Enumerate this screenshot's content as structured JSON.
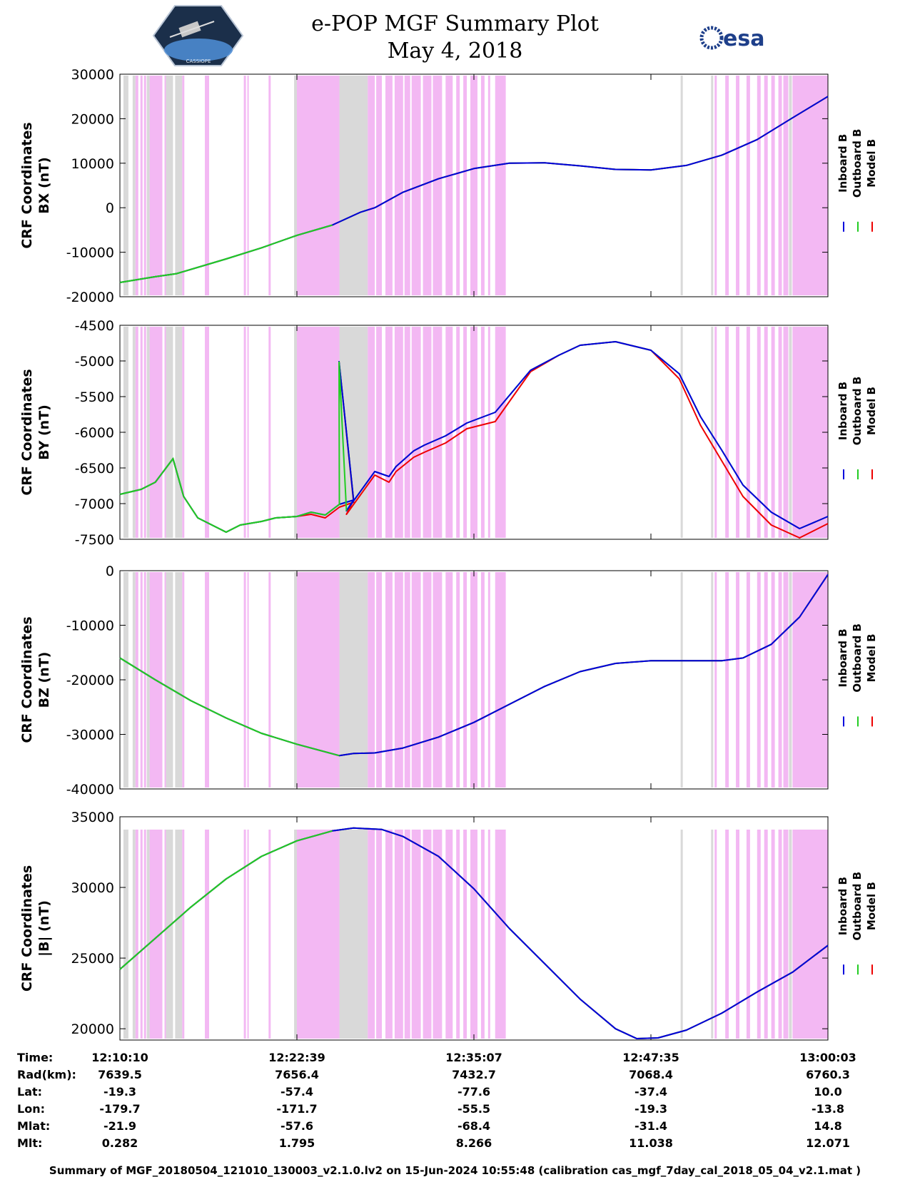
{
  "title": "e-POP MGF Summary Plot",
  "date": "May 4, 2018",
  "logos": {
    "left": "CASSIOPE",
    "right": "esa"
  },
  "legend": [
    "Inboard B",
    "Outboard B",
    "Model B"
  ],
  "colors": {
    "inboard": "#0000dd",
    "outboard": "#22cc22",
    "model": "#ee0000",
    "gray": "#d9d9d9",
    "pink": "#f3b8f3"
  },
  "chart_data": [
    {
      "type": "line",
      "ylabel": [
        "CRF Coordinates",
        "BX (nT)"
      ],
      "ylim": [
        -20000,
        30000
      ],
      "yticks": [
        -20000,
        -10000,
        0,
        10000,
        20000,
        30000
      ],
      "x": [
        0,
        0.05,
        0.08,
        0.15,
        0.2,
        0.25,
        0.3,
        0.34,
        0.36,
        0.4,
        0.45,
        0.5,
        0.55,
        0.6,
        0.65,
        0.7,
        0.75,
        0.8,
        0.85,
        0.9,
        0.95,
        1.0
      ],
      "series": [
        {
          "name": "Inboard B",
          "values": [
            -16800,
            -15500,
            -14800,
            -11500,
            -9000,
            -6200,
            -3900,
            -1000,
            0,
            3500,
            6500,
            8800,
            10000,
            10100,
            9400,
            8600,
            8500,
            9500,
            11800,
            15300,
            20200,
            25000
          ]
        },
        {
          "name": "Outboard B",
          "values": [
            -16800,
            -15500,
            -14800,
            -11500,
            -9000,
            -6200,
            -3900,
            -1000,
            0,
            3500,
            6500,
            8800,
            10000,
            10100,
            9400,
            8600,
            8500,
            9500,
            11800,
            15300,
            20200,
            25000
          ]
        },
        {
          "name": "Model B",
          "values": [
            -16800,
            -15500,
            -14800,
            -11500,
            -9000,
            -6200,
            -3900,
            -1000,
            0,
            3500,
            6500,
            8800,
            10000,
            10100,
            9400,
            8600,
            8500,
            9500,
            11800,
            15300,
            20200,
            25000
          ]
        }
      ]
    },
    {
      "type": "line",
      "ylabel": [
        "CRF Coordinates",
        "BY (nT)"
      ],
      "ylim": [
        -7500,
        -4500
      ],
      "yticks": [
        -7500,
        -7000,
        -6500,
        -6000,
        -5500,
        -5000,
        -4500
      ],
      "x": [
        0,
        0.03,
        0.05,
        0.075,
        0.09,
        0.11,
        0.15,
        0.17,
        0.2,
        0.22,
        0.25,
        0.27,
        0.29,
        0.31,
        0.33,
        0.3095,
        0.33,
        0.32,
        0.36,
        0.38,
        0.39,
        0.415,
        0.43,
        0.46,
        0.49,
        0.53,
        0.58,
        0.62,
        0.65,
        0.7,
        0.75,
        0.79,
        0.82,
        0.85,
        0.88,
        0.92,
        0.96,
        1.0
      ],
      "series": [
        {
          "name": "Inboard B",
          "values": [
            -6870,
            -6800,
            -6700,
            -6370,
            -6900,
            -7200,
            -7400,
            -7300,
            -7250,
            -7200,
            -7180,
            -7120,
            -7160,
            -7010,
            -6950,
            -5010,
            -6950,
            -7100,
            -6550,
            -6620,
            -6480,
            -6260,
            -6180,
            -6050,
            -5870,
            -5720,
            -5130,
            -4920,
            -4780,
            -4730,
            -4850,
            -5180,
            -5780,
            -6250,
            -6740,
            -7120,
            -7350,
            -7180
          ]
        },
        {
          "name": "Outboard B",
          "values": [
            -6870,
            -6800,
            -6700,
            -6370,
            -6900,
            -7200,
            -7400,
            -7300,
            -7250,
            -7200,
            -7180,
            -7120,
            -7160,
            -7010,
            -6950,
            -5010,
            -6950,
            -7100,
            -6550,
            -6620,
            -6480,
            -6260,
            -6180,
            -6050,
            -5870,
            -5720,
            -5130,
            -4920,
            -4780,
            -4730,
            -4850,
            -5180,
            -5780,
            -6250,
            -6740,
            -7120,
            -7350,
            -7180
          ]
        },
        {
          "name": "Model B",
          "values": [
            -6870,
            -6800,
            -6700,
            -6370,
            -6900,
            -7200,
            -7400,
            -7300,
            -7250,
            -7200,
            -7180,
            -7150,
            -7200,
            -7050,
            -6980,
            -5010,
            -6950,
            -7150,
            -6600,
            -6700,
            -6550,
            -6350,
            -6280,
            -6150,
            -5950,
            -5850,
            -5150,
            -4920,
            -4780,
            -4730,
            -4850,
            -5250,
            -5900,
            -6400,
            -6900,
            -7300,
            -7480,
            -7280
          ]
        }
      ]
    },
    {
      "type": "line",
      "ylabel": [
        "CRF Coordinates",
        "BZ (nT)"
      ],
      "ylim": [
        -40000,
        0
      ],
      "yticks": [
        -40000,
        -30000,
        -20000,
        -10000,
        0
      ],
      "x": [
        0,
        0.05,
        0.1,
        0.15,
        0.2,
        0.25,
        0.31,
        0.33,
        0.36,
        0.4,
        0.45,
        0.5,
        0.55,
        0.6,
        0.65,
        0.7,
        0.75,
        0.8,
        0.85,
        0.88,
        0.92,
        0.96,
        1.0
      ],
      "series": [
        {
          "name": "Inboard B",
          "values": [
            -16000,
            -20000,
            -23800,
            -27000,
            -29800,
            -31800,
            -33900,
            -33500,
            -33400,
            -32500,
            -30500,
            -27800,
            -24500,
            -21200,
            -18500,
            -17000,
            -16500,
            -16500,
            -16500,
            -16000,
            -13500,
            -8500,
            -700
          ]
        },
        {
          "name": "Outboard B",
          "values": [
            -16000,
            -20000,
            -23800,
            -27000,
            -29800,
            -31800,
            -33900,
            -33500,
            -33400,
            -32500,
            -30500,
            -27800,
            -24500,
            -21200,
            -18500,
            -17000,
            -16500,
            -16500,
            -16500,
            -16000,
            -13500,
            -8500,
            -700
          ]
        },
        {
          "name": "Model B",
          "values": [
            -16000,
            -20000,
            -23800,
            -27000,
            -29800,
            -31800,
            -33900,
            -33500,
            -33400,
            -32500,
            -30500,
            -27800,
            -24500,
            -21200,
            -18500,
            -17000,
            -16500,
            -16500,
            -16500,
            -16000,
            -13500,
            -8500,
            -700
          ]
        }
      ]
    },
    {
      "type": "line",
      "ylabel": [
        "CRF Coordinates",
        "|B| (nT)"
      ],
      "ylim": [
        19200,
        35000
      ],
      "yticks": [
        20000,
        25000,
        30000,
        35000
      ],
      "x": [
        0,
        0.05,
        0.1,
        0.15,
        0.2,
        0.25,
        0.3,
        0.33,
        0.37,
        0.4,
        0.45,
        0.5,
        0.55,
        0.6,
        0.65,
        0.7,
        0.73,
        0.76,
        0.8,
        0.85,
        0.9,
        0.95,
        1.0
      ],
      "series": [
        {
          "name": "Inboard B",
          "values": [
            24200,
            26400,
            28600,
            30600,
            32200,
            33300,
            34000,
            34200,
            34100,
            33600,
            32200,
            29900,
            27100,
            24600,
            22100,
            20000,
            19300,
            19350,
            19900,
            21100,
            22600,
            24000,
            25900
          ]
        },
        {
          "name": "Outboard B",
          "values": [
            24200,
            26400,
            28600,
            30600,
            32200,
            33300,
            34000,
            34200,
            34100,
            33600,
            32200,
            29900,
            27100,
            24600,
            22100,
            20000,
            19300,
            19350,
            19900,
            21100,
            22600,
            24000,
            25900
          ]
        },
        {
          "name": "Model B",
          "values": [
            24200,
            26400,
            28600,
            30600,
            32200,
            33300,
            34000,
            34200,
            34100,
            33600,
            32200,
            29900,
            27100,
            24600,
            22100,
            20000,
            19300,
            19350,
            19900,
            21100,
            22600,
            24000,
            25900
          ]
        }
      ]
    }
  ],
  "shading": {
    "gray": [
      [
        0.005,
        0.012
      ],
      [
        0.018,
        0.022
      ],
      [
        0.038,
        0.042
      ],
      [
        0.065,
        0.075
      ],
      [
        0.078,
        0.088
      ],
      [
        0.246,
        0.25
      ],
      [
        0.31,
        0.35
      ],
      [
        0.792,
        0.795
      ],
      [
        0.835,
        0.838
      ],
      [
        0.945,
        0.949
      ]
    ],
    "pink": [
      [
        0.022,
        0.026
      ],
      [
        0.029,
        0.032
      ],
      [
        0.034,
        0.037
      ],
      [
        0.042,
        0.06
      ],
      [
        0.063,
        0.065
      ],
      [
        0.088,
        0.091
      ],
      [
        0.12,
        0.126
      ],
      [
        0.175,
        0.178
      ],
      [
        0.18,
        0.182
      ],
      [
        0.21,
        0.213
      ],
      [
        0.25,
        0.31
      ],
      [
        0.35,
        0.36
      ],
      [
        0.362,
        0.37
      ],
      [
        0.375,
        0.385
      ],
      [
        0.388,
        0.4
      ],
      [
        0.402,
        0.41
      ],
      [
        0.412,
        0.425
      ],
      [
        0.428,
        0.44
      ],
      [
        0.442,
        0.455
      ],
      [
        0.46,
        0.47
      ],
      [
        0.475,
        0.48
      ],
      [
        0.485,
        0.49
      ],
      [
        0.495,
        0.505
      ],
      [
        0.51,
        0.515
      ],
      [
        0.52,
        0.523
      ],
      [
        0.53,
        0.545
      ],
      [
        0.84,
        0.843
      ],
      [
        0.855,
        0.86
      ],
      [
        0.87,
        0.875
      ],
      [
        0.885,
        0.89
      ],
      [
        0.9,
        0.905
      ],
      [
        0.91,
        0.915
      ],
      [
        0.92,
        0.925
      ],
      [
        0.93,
        0.935
      ],
      [
        0.937,
        0.944
      ],
      [
        0.95,
        1.0
      ]
    ]
  },
  "xticks": [
    "12:10:10",
    "12:22:39",
    "12:35:07",
    "12:47:35",
    "13:00:03"
  ],
  "ephemeris": {
    "labels": [
      "Time:",
      "Rad(km):",
      "Lat:",
      "Lon:",
      "Mlat:",
      "Mlt:"
    ],
    "rows": [
      [
        "12:10:10",
        "12:22:39",
        "12:35:07",
        "12:47:35",
        "13:00:03"
      ],
      [
        "7639.5",
        "7656.4",
        "7432.7",
        "7068.4",
        "6760.3"
      ],
      [
        "-19.3",
        "-57.4",
        "-77.6",
        "-37.4",
        "10.0"
      ],
      [
        "-179.7",
        "-171.7",
        "-55.5",
        "-19.3",
        "-13.8"
      ],
      [
        "-21.9",
        "-57.6",
        "-68.4",
        "-31.4",
        "14.8"
      ],
      [
        "0.282",
        "1.795",
        "8.266",
        "11.038",
        "12.071"
      ]
    ]
  },
  "footer": "Summary of MGF_20180504_121010_130003_v2.1.0.lv2 on 15-Jun-2024 10:55:48 (calibration cas_mgf_7day_cal_2018_05_04_v2.1.mat )"
}
